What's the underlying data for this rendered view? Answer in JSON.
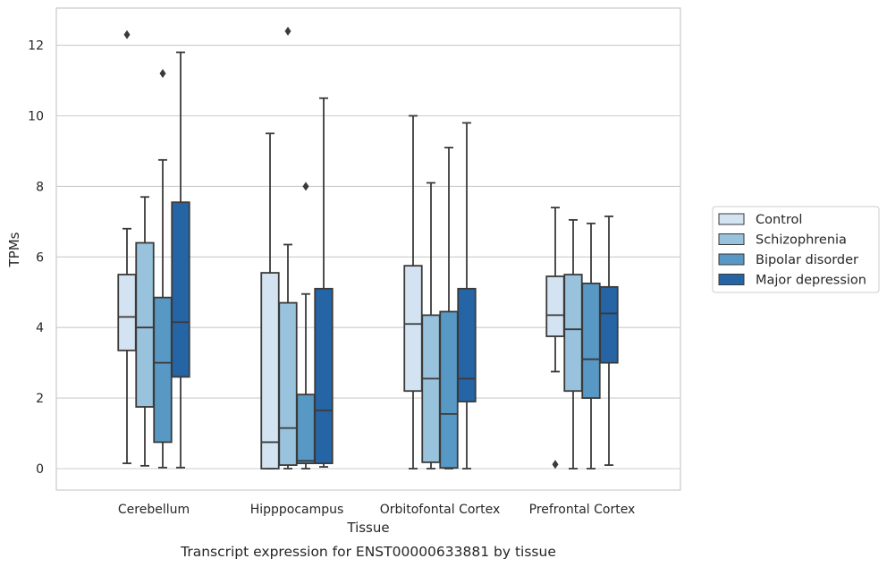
{
  "chart_data": {
    "type": "boxplot",
    "xlabel": "Tissue",
    "ylabel": "TPMs",
    "caption": "Transcript expression for ENST00000633881 by tissue",
    "ylim": [
      -0.6,
      13.0
    ],
    "yticks": [
      0,
      2,
      4,
      6,
      8,
      10,
      12
    ],
    "grid": true,
    "legend_position": "right",
    "categories": [
      "Cerebellum",
      "Hipppocampus",
      "Orbitofontal Cortex",
      "Prefrontal Cortex"
    ],
    "series": [
      {
        "name": "Control",
        "color": "#d3e3f2",
        "boxes": [
          {
            "whislo": 0.15,
            "q1": 3.35,
            "med": 4.3,
            "q3": 5.5,
            "whishi": 6.8,
            "fliers": [
              12.3
            ]
          },
          {
            "whislo": 0.0,
            "q1": 0.0,
            "med": 0.75,
            "q3": 5.55,
            "whishi": 9.5,
            "fliers": []
          },
          {
            "whislo": 0.0,
            "q1": 2.2,
            "med": 4.1,
            "q3": 5.75,
            "whishi": 10.0,
            "fliers": []
          },
          {
            "whislo": 2.75,
            "q1": 3.75,
            "med": 4.35,
            "q3": 5.45,
            "whishi": 7.4,
            "fliers": [
              0.12
            ]
          }
        ]
      },
      {
        "name": "Schizophrenia",
        "color": "#99c2dd",
        "boxes": [
          {
            "whislo": 0.08,
            "q1": 1.75,
            "med": 4.0,
            "q3": 6.4,
            "whishi": 7.7,
            "fliers": []
          },
          {
            "whislo": 0.0,
            "q1": 0.1,
            "med": 1.15,
            "q3": 4.7,
            "whishi": 6.35,
            "fliers": [
              12.4
            ]
          },
          {
            "whislo": 0.0,
            "q1": 0.18,
            "med": 2.55,
            "q3": 4.35,
            "whishi": 8.1,
            "fliers": []
          },
          {
            "whislo": 0.0,
            "q1": 2.2,
            "med": 3.95,
            "q3": 5.5,
            "whishi": 7.05,
            "fliers": []
          }
        ]
      },
      {
        "name": "Bipolar disorder",
        "color": "#5898c5",
        "boxes": [
          {
            "whislo": 0.03,
            "q1": 0.75,
            "med": 3.0,
            "q3": 4.85,
            "whishi": 8.75,
            "fliers": [
              11.2
            ]
          },
          {
            "whislo": 0.0,
            "q1": 0.15,
            "med": 0.22,
            "q3": 2.1,
            "whishi": 4.95,
            "fliers": [
              8.0
            ]
          },
          {
            "whislo": 0.0,
            "q1": 0.02,
            "med": 1.55,
            "q3": 4.45,
            "whishi": 9.1,
            "fliers": []
          },
          {
            "whislo": 0.0,
            "q1": 2.0,
            "med": 3.1,
            "q3": 5.25,
            "whishi": 6.95,
            "fliers": []
          }
        ]
      },
      {
        "name": "Major depression",
        "color": "#2565a6",
        "boxes": [
          {
            "whislo": 0.03,
            "q1": 2.6,
            "med": 4.15,
            "q3": 7.55,
            "whishi": 11.8,
            "fliers": []
          },
          {
            "whislo": 0.05,
            "q1": 0.15,
            "med": 1.65,
            "q3": 5.1,
            "whishi": 10.5,
            "fliers": []
          },
          {
            "whislo": 0.0,
            "q1": 1.9,
            "med": 2.55,
            "q3": 5.1,
            "whishi": 9.8,
            "fliers": []
          },
          {
            "whislo": 0.1,
            "q1": 3.0,
            "med": 4.4,
            "q3": 5.15,
            "whishi": 7.15,
            "fliers": []
          }
        ]
      }
    ]
  }
}
